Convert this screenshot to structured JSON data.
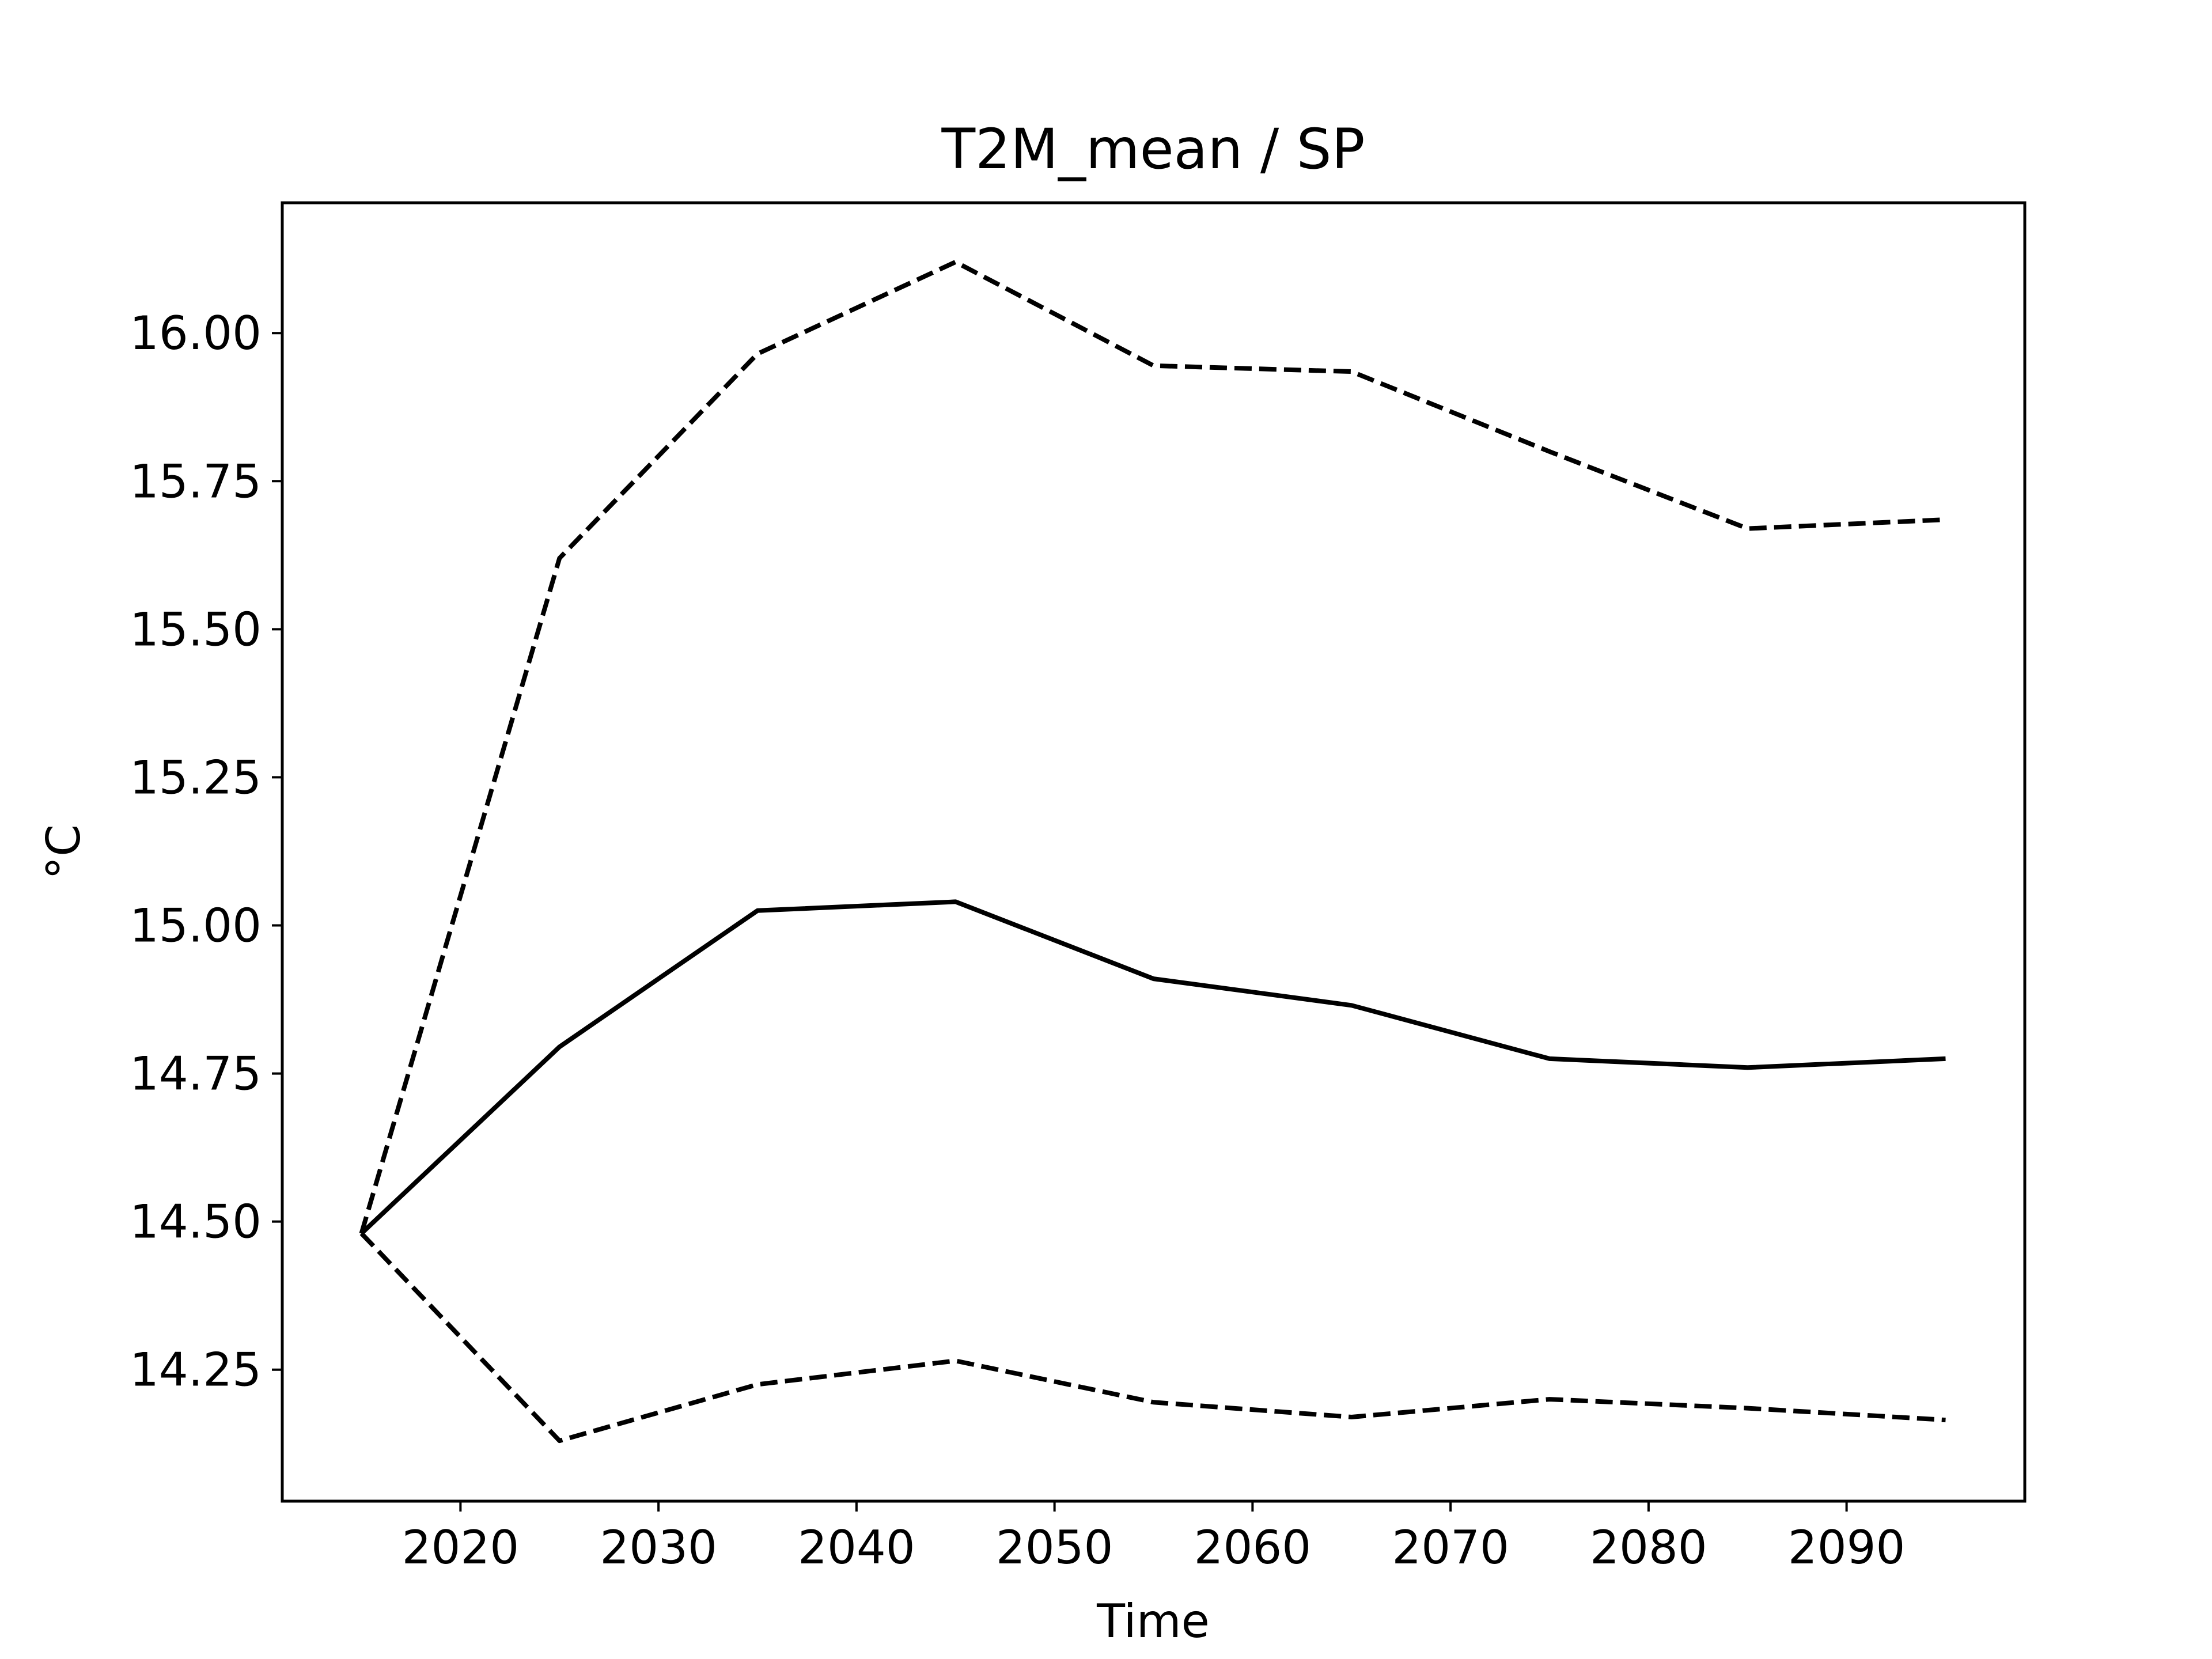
{
  "chart_data": {
    "type": "line",
    "title": "T2M_mean / SP",
    "xlabel": "Time",
    "ylabel": "°C",
    "xlim": [
      2011,
      2099
    ],
    "ylim": [
      14.028,
      16.22
    ],
    "x_ticks": [
      2020,
      2030,
      2040,
      2050,
      2060,
      2070,
      2080,
      2090
    ],
    "y_ticks": [
      14.25,
      14.5,
      14.75,
      15.0,
      15.25,
      15.5,
      15.75,
      16.0
    ],
    "y_tick_labels": [
      "14.25",
      "14.50",
      "14.75",
      "15.00",
      "15.25",
      "15.50",
      "15.75",
      "16.00"
    ],
    "grid": false,
    "line_color": "#000000",
    "x": [
      2015,
      2025,
      2035,
      2045,
      2055,
      2065,
      2075,
      2085,
      2095
    ],
    "series": [
      {
        "style": "solid",
        "values": [
          14.48,
          14.795,
          15.025,
          15.04,
          14.91,
          14.865,
          14.775,
          14.76,
          14.775
        ]
      },
      {
        "style": "dashed",
        "values": [
          14.48,
          15.62,
          15.965,
          16.12,
          15.945,
          15.935,
          15.8,
          15.67,
          15.685
        ]
      },
      {
        "style": "dashed",
        "values": [
          14.48,
          14.13,
          14.225,
          14.265,
          14.195,
          14.17,
          14.2,
          14.185,
          14.165
        ]
      }
    ]
  }
}
